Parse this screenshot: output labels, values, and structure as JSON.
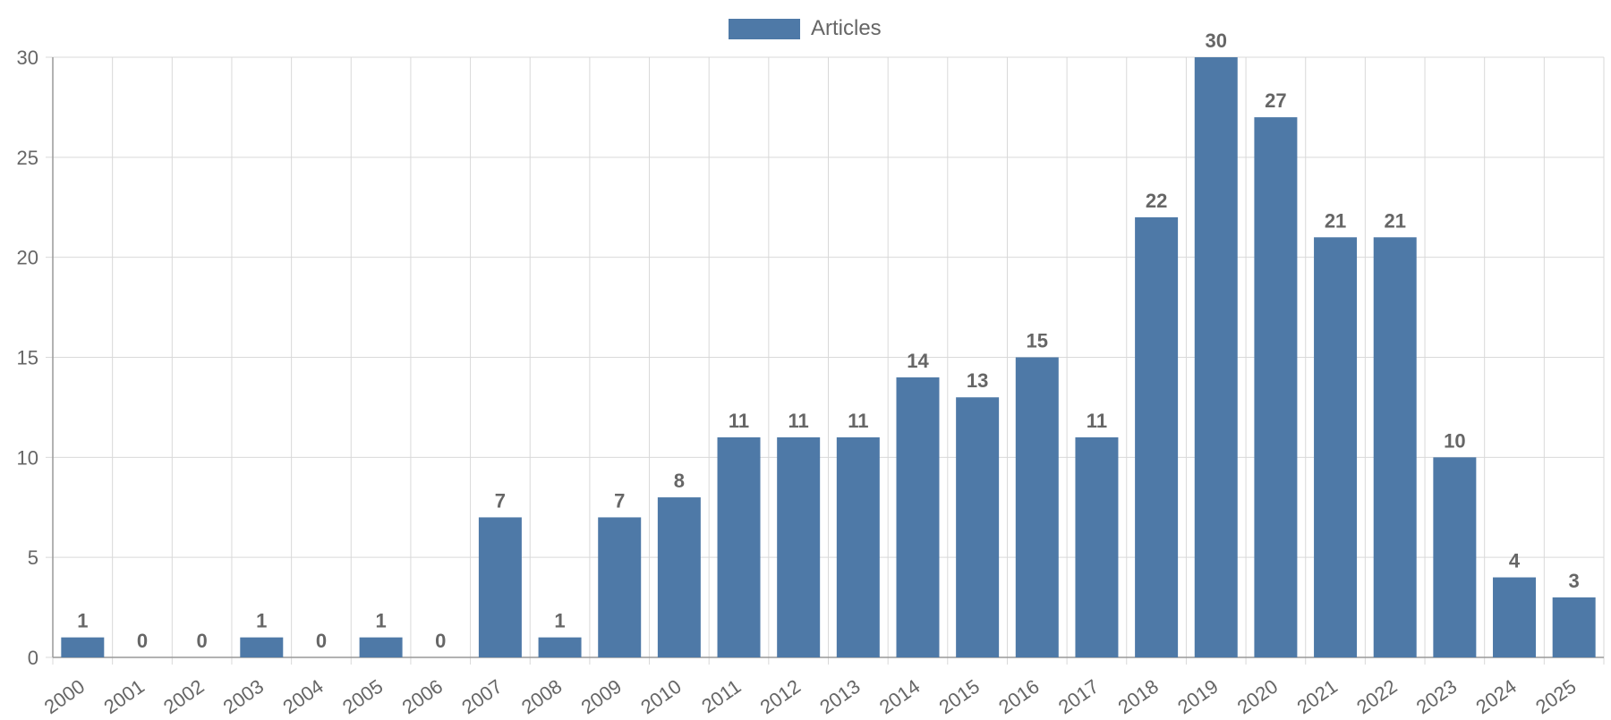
{
  "chart_data": {
    "type": "bar",
    "categories": [
      "2000",
      "2001",
      "2002",
      "2003",
      "2004",
      "2005",
      "2006",
      "2007",
      "2008",
      "2009",
      "2010",
      "2011",
      "2012",
      "2013",
      "2014",
      "2015",
      "2016",
      "2017",
      "2018",
      "2019",
      "2020",
      "2021",
      "2022",
      "2023",
      "2024",
      "2025"
    ],
    "series": [
      {
        "name": "Articles",
        "values": [
          1,
          0,
          0,
          1,
          0,
          1,
          0,
          7,
          1,
          7,
          8,
          11,
          11,
          11,
          14,
          13,
          15,
          11,
          22,
          30,
          27,
          21,
          21,
          10,
          4,
          3
        ]
      }
    ],
    "ylim": [
      0,
      30
    ],
    "yticks": [
      0,
      5,
      10,
      15,
      20,
      25,
      30
    ],
    "grid": true,
    "legend_position": "top-center",
    "data_labels": true,
    "colors": {
      "bar": "#4e79a7",
      "grid": "#d9d9d9",
      "axis": "#999999",
      "label_text": "#666666"
    }
  }
}
